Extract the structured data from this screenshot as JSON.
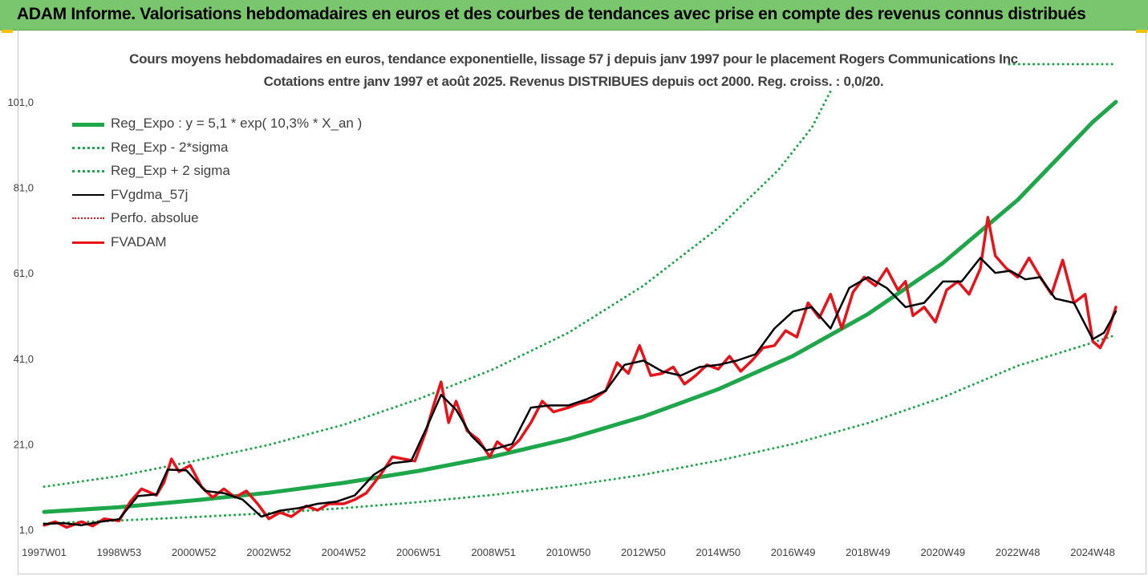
{
  "banner": {
    "text": "ADAM Informe. Valorisations hebdomadaires en euros et des courbes de tendances avec prise en compte des revenus connus distribués"
  },
  "chart_data": {
    "type": "line",
    "title_lines": [
      "Cours moyens hebdomadaires en euros, tendance exponentielle, lissage 57 j depuis janv 1997  pour le placement Rogers Communications Inc",
      "Cotations entre janv 1997 et août 2025. Revenus DISTRIBUES depuis oct 2000. Reg. croiss. : 0,0/20."
    ],
    "y_ticks": [
      "1,0",
      "21,0",
      "41,0",
      "61,0",
      "81,0",
      "101,0"
    ],
    "ylim": [
      1,
      101
    ],
    "x_ticks": [
      "1997W01",
      "1998W53",
      "2000W52",
      "2002W52",
      "2004W52",
      "2006W51",
      "2008W51",
      "2010W50",
      "2012W50",
      "2014W50",
      "2016W49",
      "2018W49",
      "2020W49",
      "2022W48",
      "2024W48"
    ],
    "x_tick_years": [
      1997.0,
      1999.0,
      2001.0,
      2003.0,
      2005.0,
      2007.0,
      2009.0,
      2011.0,
      2013.0,
      2015.0,
      2017.0,
      2019.0,
      2021.0,
      2023.0,
      2025.0
    ],
    "xlim": [
      1997.0,
      2025.62
    ],
    "legend_position": "top-left",
    "grid": false,
    "series": [
      {
        "name": "Reg_Expo : y = 5,1 * exp( 10,3% *  X_an )",
        "color": "#1ea64a",
        "style": "solid",
        "width": 5,
        "x": [
          1997.0,
          1999.0,
          2001.0,
          2003.0,
          2005.0,
          2007.0,
          2009.0,
          2011.0,
          2013.0,
          2015.0,
          2017.0,
          2019.0,
          2021.0,
          2023.0,
          2025.0,
          2025.62
        ],
        "y": [
          5.1,
          6.2,
          7.8,
          9.6,
          11.9,
          14.7,
          18.1,
          22.2,
          27.4,
          33.8,
          41.6,
          51.4,
          63.3,
          78.1,
          96.3,
          101.0
        ]
      },
      {
        "name": "Reg_Exp - 2*sigma",
        "color": "#1ea64a",
        "style": "dotted",
        "width": 3,
        "x": [
          1997.0,
          1999.0,
          2001.0,
          2003.0,
          2005.0,
          2007.0,
          2009.0,
          2011.0,
          2013.0,
          2015.0,
          2017.0,
          2019.0,
          2021.0,
          2023.0,
          2025.0,
          2025.62
        ],
        "y": [
          2.4,
          3.1,
          3.9,
          4.8,
          6.0,
          7.4,
          9.1,
          11.2,
          13.8,
          17.1,
          21.0,
          25.9,
          31.9,
          39.3,
          44.7,
          46.5
        ]
      },
      {
        "name": "Reg_Exp + 2 sigma",
        "color": "#1ea64a",
        "style": "dotted",
        "width": 3,
        "x": [
          1997.0,
          1999.0,
          2001.0,
          2003.0,
          2005.0,
          2007.0,
          2009.0,
          2011.0,
          2013.0,
          2015.0,
          2016.6,
          2017.5,
          2018.0
        ],
        "y": [
          11.0,
          13.5,
          17.0,
          20.8,
          25.5,
          31.5,
          38.5,
          47.0,
          58.0,
          71.5,
          85.0,
          95.0,
          103.5
        ]
      },
      {
        "name": "FVgdma_57j",
        "color": "#000000",
        "style": "solid",
        "width": 2.5,
        "x": [
          1997.0,
          1997.5,
          1998.0,
          1998.5,
          1999.0,
          1999.5,
          2000.0,
          2000.3,
          2000.8,
          2001.3,
          2001.8,
          2002.3,
          2002.8,
          2003.3,
          2003.8,
          2004.3,
          2004.8,
          2005.3,
          2005.8,
          2006.3,
          2006.8,
          2007.2,
          2007.6,
          2008.0,
          2008.4,
          2008.8,
          2009.1,
          2009.5,
          2010.0,
          2010.5,
          2011.0,
          2011.5,
          2012.0,
          2012.5,
          2013.0,
          2013.5,
          2014.0,
          2014.5,
          2015.0,
          2015.5,
          2016.0,
          2016.5,
          2017.0,
          2017.5,
          2018.0,
          2018.5,
          2019.0,
          2019.5,
          2020.0,
          2020.5,
          2021.0,
          2021.5,
          2022.0,
          2022.4,
          2022.8,
          2023.2,
          2023.6,
          2024.0,
          2024.5,
          2025.0,
          2025.3,
          2025.62
        ],
        "y": [
          2.3,
          2.5,
          2.0,
          2.8,
          3.4,
          8.8,
          9.2,
          15.0,
          14.8,
          10.0,
          9.5,
          8.0,
          4.0,
          5.4,
          6.0,
          7.0,
          7.5,
          9.0,
          13.8,
          16.5,
          17.0,
          24.5,
          32.5,
          29.0,
          23.0,
          19.5,
          20.0,
          21.0,
          29.5,
          30.0,
          30.0,
          31.5,
          33.5,
          39.5,
          40.5,
          38.0,
          37.0,
          39.0,
          39.5,
          40.5,
          42.0,
          48.0,
          52.0,
          53.0,
          48.0,
          57.5,
          60.0,
          57.5,
          53.0,
          54.0,
          59.0,
          59.0,
          64.5,
          61.0,
          61.5,
          59.5,
          60.0,
          55.0,
          54.0,
          45.5,
          47.0,
          52.0
        ]
      },
      {
        "name": "Perfo. absolue",
        "color": "#e8121b",
        "style": "dotted",
        "width": 2,
        "x": [],
        "y": []
      },
      {
        "name": "FVADAM",
        "color": "#e8121b",
        "style": "solid",
        "width": 3.5,
        "x": [
          1997.0,
          1997.3,
          1997.6,
          1998.0,
          1998.3,
          1998.6,
          1999.0,
          1999.3,
          1999.6,
          2000.0,
          2000.2,
          2000.4,
          2000.6,
          2000.9,
          2001.2,
          2001.5,
          2001.8,
          2002.1,
          2002.4,
          2002.7,
          2003.0,
          2003.3,
          2003.6,
          2004.0,
          2004.3,
          2004.6,
          2005.0,
          2005.3,
          2005.6,
          2006.0,
          2006.3,
          2006.6,
          2006.9,
          2007.2,
          2007.4,
          2007.6,
          2007.8,
          2008.0,
          2008.3,
          2008.6,
          2008.9,
          2009.1,
          2009.4,
          2009.7,
          2010.0,
          2010.3,
          2010.6,
          2011.0,
          2011.3,
          2011.6,
          2012.0,
          2012.3,
          2012.6,
          2012.9,
          2013.2,
          2013.5,
          2013.8,
          2014.1,
          2014.4,
          2014.7,
          2015.0,
          2015.3,
          2015.6,
          2015.9,
          2016.2,
          2016.5,
          2016.8,
          2017.1,
          2017.4,
          2017.7,
          2018.0,
          2018.3,
          2018.6,
          2018.9,
          2019.2,
          2019.5,
          2019.8,
          2020.0,
          2020.2,
          2020.5,
          2020.8,
          2021.1,
          2021.4,
          2021.7,
          2022.0,
          2022.2,
          2022.4,
          2022.7,
          2023.0,
          2023.3,
          2023.6,
          2023.9,
          2024.2,
          2024.5,
          2024.8,
          2025.0,
          2025.2,
          2025.4,
          2025.62
        ],
        "y": [
          2.0,
          2.8,
          1.5,
          2.8,
          1.8,
          3.5,
          3.0,
          7.5,
          10.5,
          9.0,
          12.0,
          17.5,
          14.5,
          16.0,
          11.0,
          8.5,
          10.5,
          8.5,
          10.0,
          7.0,
          3.5,
          5.0,
          4.0,
          6.5,
          5.5,
          7.0,
          7.0,
          8.0,
          9.5,
          14.0,
          18.0,
          17.5,
          17.0,
          24.0,
          30.0,
          35.5,
          26.0,
          31.0,
          24.0,
          22.0,
          18.0,
          21.5,
          19.5,
          22.0,
          26.0,
          31.0,
          28.5,
          29.5,
          30.5,
          31.0,
          33.5,
          40.0,
          37.5,
          44.0,
          37.0,
          37.5,
          39.0,
          35.0,
          37.0,
          39.5,
          38.5,
          41.5,
          38.0,
          40.5,
          43.5,
          44.0,
          47.5,
          46.0,
          54.0,
          50.5,
          56.0,
          48.0,
          56.5,
          60.0,
          58.0,
          62.0,
          57.0,
          59.0,
          51.0,
          53.0,
          49.5,
          57.0,
          59.0,
          56.0,
          62.0,
          74.0,
          65.0,
          62.0,
          60.0,
          64.5,
          60.0,
          56.0,
          64.0,
          54.0,
          56.0,
          45.0,
          43.5,
          47.0,
          53.0
        ]
      }
    ]
  }
}
